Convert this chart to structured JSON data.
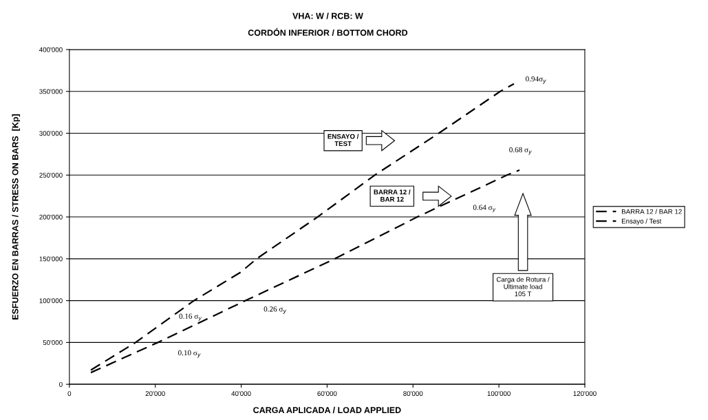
{
  "chart_data": {
    "type": "line",
    "title": "VHA: W / RCB: W",
    "subtitle": "CORDÓN INFERIOR / BOTTOM CHORD",
    "xlabel": "CARGA APLICADA / LOAD APPLIED",
    "ylabel": "ESFUERZO EN BARRAS / STRESS ON BARS  [Kp]",
    "xlim": [
      0,
      120000
    ],
    "xticks": [
      {
        "value": 0,
        "label": "0"
      },
      {
        "value": 20000,
        "label": "20'000"
      },
      {
        "value": 40000,
        "label": "40'000"
      },
      {
        "value": 60000,
        "label": "60'000"
      },
      {
        "value": 80000,
        "label": "80'000"
      },
      {
        "value": 100000,
        "label": "100'000"
      },
      {
        "value": 120000,
        "label": "120'000"
      }
    ],
    "ylim": [
      0,
      400000
    ],
    "yticks": [
      {
        "value": 0,
        "label": "0"
      },
      {
        "value": 50000,
        "label": "50'000"
      },
      {
        "value": 100000,
        "label": "100'000"
      },
      {
        "value": 150000,
        "label": "150'000"
      },
      {
        "value": 200000,
        "label": "200'000"
      },
      {
        "value": 250000,
        "label": "250'000"
      },
      {
        "value": 300000,
        "label": "300'000"
      },
      {
        "value": 350000,
        "label": "350'000"
      },
      {
        "value": 400000,
        "label": "400'000"
      }
    ],
    "grid": "y",
    "legend": "right",
    "line_style": "dashed",
    "marker": "none",
    "series": [
      {
        "name": "BARRA 12 / BAR 12",
        "color": "#000000",
        "x": [
          5000,
          20600,
          41000,
          61800,
          81000,
          101900,
          104800
        ],
        "values": [
          14000,
          50000,
          100000,
          150000,
          200000,
          250000,
          256000
        ]
      },
      {
        "name": "Ensayo / Test",
        "color": "#000000",
        "x": [
          5000,
          15400,
          29000,
          39900,
          43600,
          57800,
          71100,
          86000,
          100300,
          103500
        ],
        "values": [
          17000,
          50000,
          100000,
          134000,
          150000,
          200000,
          250000,
          300000,
          350000,
          359000
        ]
      }
    ],
    "annotations": [
      {
        "text": "0.10 σ$_{y}$",
        "x": 20600,
        "y": 50000
      },
      "0.16 σ$_{y}$",
      {
        "text": "0.26 σ$_{y}$",
        "x": 41000,
        "y": 100000
      },
      "0.64 σ$_{y}$",
      {
        "text": "0.68 σ$_{y}$",
        "x": 104800,
        "y": 256000
      },
      {
        "text": "0.94σ$_{y}$",
        "x": 103500,
        "y": 359000
      },
      "ENSAYO /\nTEST",
      "BARRA 12 /\nBAR 12",
      "Carga de Rotura /\nUltimate load\n105 T"
    ]
  }
}
